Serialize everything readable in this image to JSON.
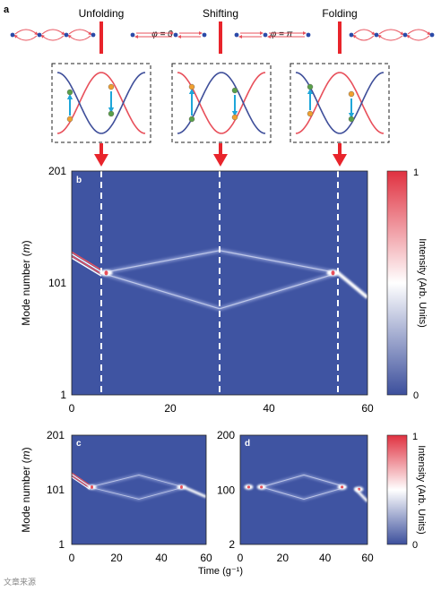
{
  "panel_a": {
    "label": "a",
    "stages": [
      "Unfolding",
      "Shifting",
      "Folding"
    ],
    "phase_labels": [
      "φ = 0",
      "φ = π"
    ],
    "colors": {
      "red": "#e8505b",
      "blue": "#3f4f9a",
      "dot_blue": "#2b4aa8",
      "green": "#5aa04a",
      "orange": "#f0a030",
      "cyan": "#1ea6d9",
      "arrow_red": "#e8242b"
    }
  },
  "chart_data": [
    {
      "id": "b",
      "label": "b",
      "type": "heatmap",
      "xlabel": "",
      "ylabel": "Mode number (m)",
      "xlim": [
        0,
        60
      ],
      "ylim": [
        1,
        201
      ],
      "xticks": [
        "0",
        "20",
        "40",
        "60"
      ],
      "yticks": [
        "1",
        "101",
        "201"
      ],
      "vlines_x": [
        6,
        30,
        54
      ],
      "trajectory": {
        "start_m": 118,
        "split_at_t": 6,
        "split_m": 110,
        "branch_top_m_at_30": 130,
        "branch_bottom_m_at_30": 78,
        "merge_at_t": 54,
        "end_m": 88
      },
      "colorbar": {
        "min": "0",
        "max": "1",
        "label": "Intensity (Arb. Units)"
      }
    },
    {
      "id": "c",
      "label": "c",
      "type": "heatmap",
      "xlabel": "",
      "ylabel": "Mode number (m)",
      "xlim": [
        0,
        60
      ],
      "ylim": [
        1,
        201
      ],
      "xticks": [
        "0",
        "20",
        "40",
        "60"
      ],
      "yticks": [
        "1",
        "101",
        "201"
      ]
    },
    {
      "id": "d",
      "label": "d",
      "type": "heatmap",
      "xlabel": "",
      "ylabel": "",
      "xlim": [
        0,
        60
      ],
      "ylim": [
        2,
        200
      ],
      "xticks": [
        "0",
        "20",
        "40",
        "60"
      ],
      "yticks": [
        "2",
        "100",
        "200"
      ],
      "colorbar": {
        "min": "0",
        "max": "1",
        "label": "Intensity (Arb. Units)"
      }
    }
  ],
  "common_xlabel": "Time (g⁻¹)",
  "watermark": "文章来源"
}
